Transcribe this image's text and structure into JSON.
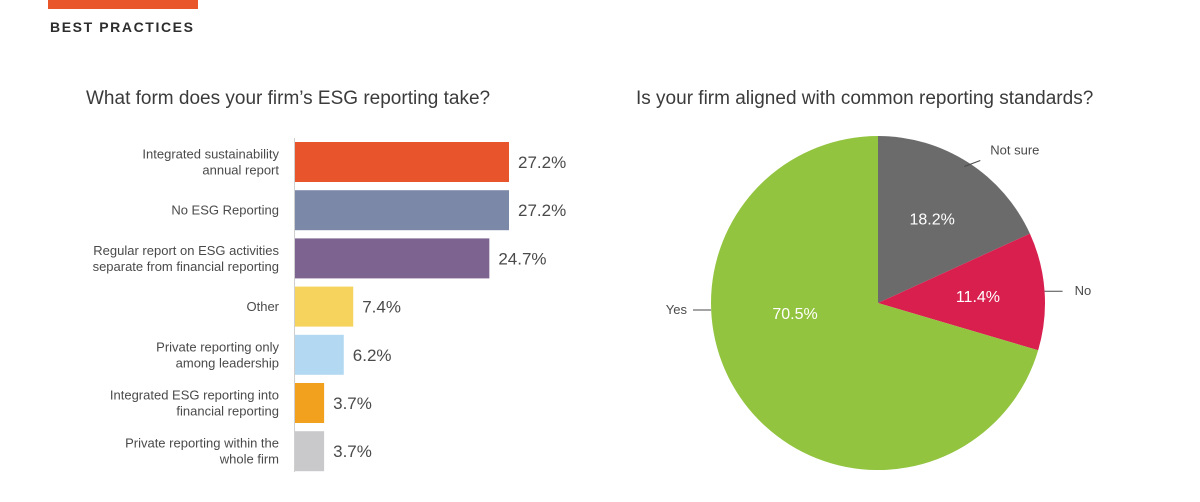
{
  "header": {
    "section_label": "BEST PRACTICES",
    "accent_color": "#e8562a"
  },
  "chart_data": [
    {
      "type": "bar",
      "orientation": "horizontal",
      "title": "What form does your firm’s ESG reporting take?",
      "categories": [
        [
          "Integrated sustainability",
          "annual report"
        ],
        [
          "No ESG Reporting"
        ],
        [
          "Regular report on ESG activities",
          "separate from financial reporting"
        ],
        [
          "Other"
        ],
        [
          "Private reporting only",
          "among leadership"
        ],
        [
          "Integrated ESG reporting into",
          "financial reporting"
        ],
        [
          "Private reporting within the",
          "whole firm"
        ]
      ],
      "values": [
        27.2,
        27.2,
        24.7,
        7.4,
        6.2,
        3.7,
        3.7
      ],
      "value_labels": [
        "27.2%",
        "27.2%",
        "24.7%",
        "7.4%",
        "6.2%",
        "3.7%",
        "3.7%"
      ],
      "colors": [
        "#e8552c",
        "#7b88a8",
        "#7c6390",
        "#f5d35c",
        "#b3d9f2",
        "#f2a11f",
        "#c9c9cc"
      ],
      "xlim": [
        0,
        30
      ],
      "grid": false
    },
    {
      "type": "pie",
      "title": "Is your firm aligned with common reporting standards?",
      "slices": [
        {
          "label": "Not sure",
          "value": 18.2,
          "value_label": "18.2%",
          "color": "#6b6b6b"
        },
        {
          "label": "No",
          "value": 11.4,
          "value_label": "11.4%",
          "color": "#d81f4e"
        },
        {
          "label": "Yes",
          "value": 70.5,
          "value_label": "70.5%",
          "color": "#92c43f"
        }
      ],
      "start": "12 o'clock, clockwise"
    }
  ]
}
